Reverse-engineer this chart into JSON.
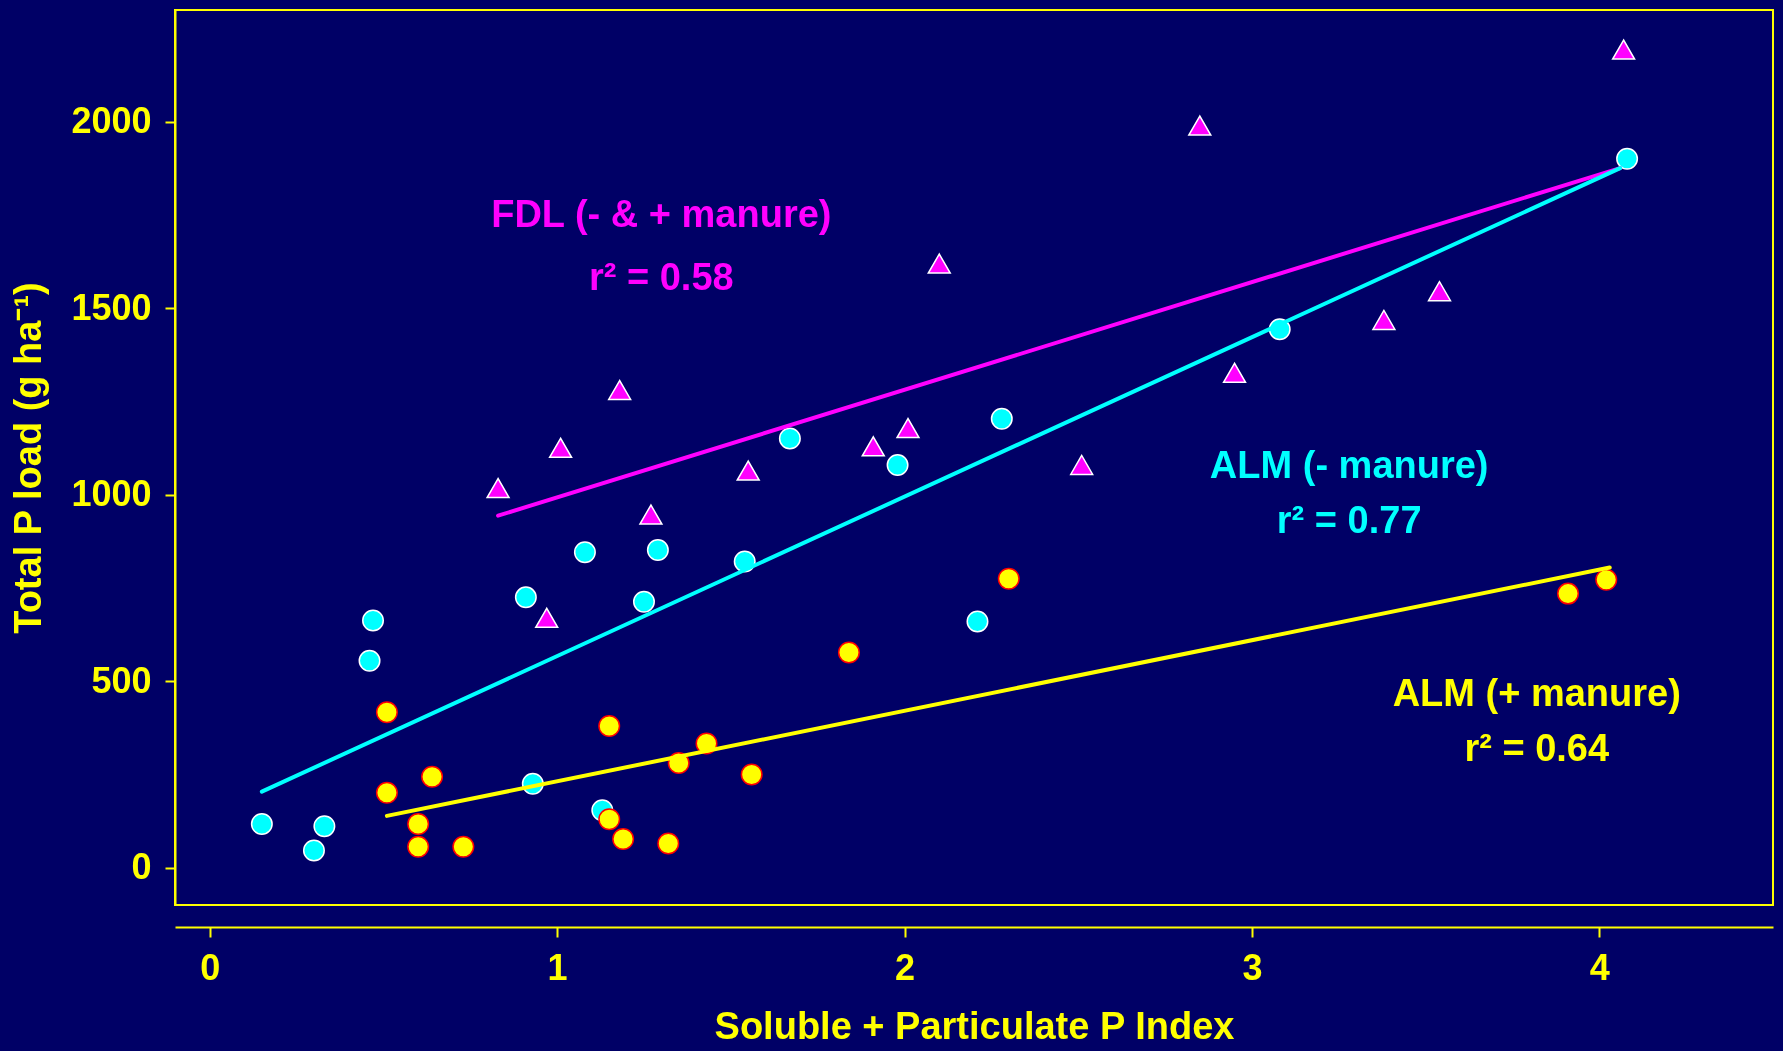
{
  "chart_data": {
    "type": "scatter",
    "xlabel": "Soluble + Particulate P Index",
    "ylabel": "Total P load (g ha⁻¹)",
    "xlim": [
      -0.1,
      4.5
    ],
    "ylim": [
      -100,
      2300
    ],
    "xticks": [
      0,
      1,
      2,
      3,
      4
    ],
    "yticks": [
      0,
      500,
      1000,
      1500,
      2000
    ],
    "grid": false,
    "annotations": [
      "FDL (- & + manure)",
      "r² = 0.58",
      "ALM (- manure)",
      "r² = 0.77",
      "ALM (+ manure)",
      "r² = 0.64"
    ],
    "series": [
      {
        "marker": "triangle",
        "color": "#ff00ff",
        "x": [
          0.83,
          1.01,
          1.18,
          1.27,
          0.97,
          1.55,
          1.91,
          2.01,
          2.1,
          2.51,
          2.85,
          2.95,
          3.38,
          3.54,
          4.07
        ],
        "values": [
          1018,
          1126,
          1281,
          947,
          670,
          1065,
          1130,
          1179,
          1620,
          1080,
          1990,
          1327,
          1469,
          1546,
          2194
        ]
      },
      {
        "marker": "circle",
        "color": "#00ffff",
        "x": [
          0.15,
          0.3,
          0.33,
          0.46,
          0.47,
          0.91,
          0.93,
          1.08,
          1.13,
          1.25,
          1.29,
          1.54,
          1.67,
          1.98,
          2.21,
          2.28,
          3.08,
          4.08
        ],
        "values": [
          117,
          46,
          111,
          555,
          663,
          725,
          225,
          846,
          154,
          713,
          852,
          821,
          1151,
          1080,
          660,
          1204,
          1444,
          1901
        ]
      },
      {
        "marker": "circle",
        "color": "#ffff00",
        "x": [
          0.51,
          0.51,
          0.6,
          0.6,
          0.64,
          0.73,
          1.15,
          1.15,
          1.19,
          1.32,
          1.35,
          1.43,
          1.56,
          1.84,
          2.3,
          3.91,
          4.02
        ],
        "values": [
          417,
          201,
          117,
          56,
          244,
          56,
          380,
          130,
          77,
          65,
          281,
          333,
          250,
          577,
          775,
          735,
          772
        ]
      },
      {
        "type": "line",
        "color": "#ff00ff",
        "x": [
          0.83,
          4.06
        ],
        "values": [
          944,
          1876
        ]
      },
      {
        "type": "line",
        "color": "#00ffff",
        "x": [
          0.15,
          4.06
        ],
        "values": [
          204,
          1876
        ]
      },
      {
        "type": "line",
        "color": "#ffff00",
        "x": [
          0.51,
          4.03
        ],
        "values": [
          139,
          805
        ]
      }
    ]
  }
}
